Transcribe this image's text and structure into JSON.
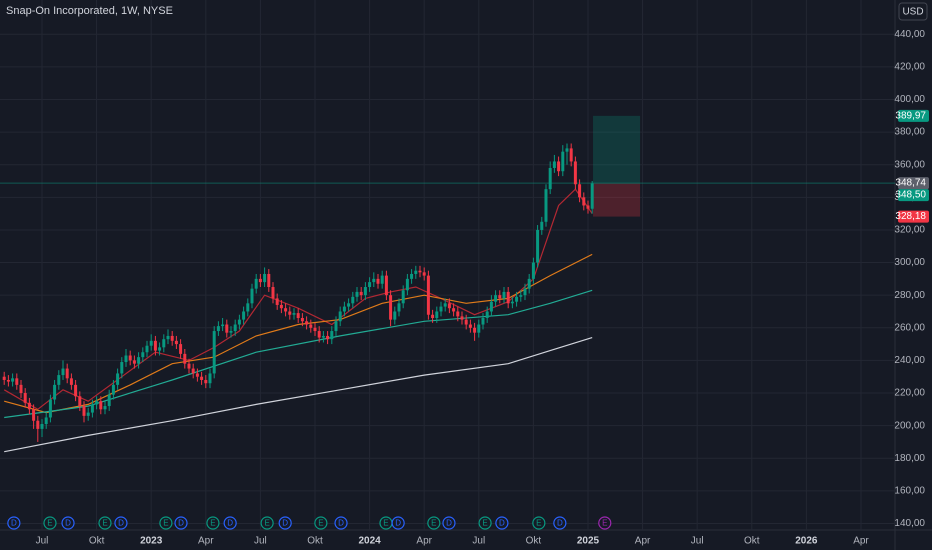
{
  "chart_data": {
    "type": "candlestick",
    "title": "Snap-On Incorporated, 1W, NYSE",
    "currency": "USD",
    "xlim": [
      -1,
      212.1
    ],
    "ylim": [
      136,
      461
    ],
    "grid": true,
    "up_color": "#089981",
    "down_color": "#f23645",
    "xticks": [
      {
        "value": 9,
        "label": "Jul"
      },
      {
        "value": 22,
        "label": "Okt"
      },
      {
        "value": 35,
        "label": "2023"
      },
      {
        "value": 48,
        "label": "Apr"
      },
      {
        "value": 61,
        "label": "Jul"
      },
      {
        "value": 74,
        "label": "Okt"
      },
      {
        "value": 87,
        "label": "2024"
      },
      {
        "value": 100,
        "label": "Apr"
      },
      {
        "value": 113,
        "label": "Jul"
      },
      {
        "value": 126,
        "label": "Okt"
      },
      {
        "value": 139,
        "label": "2025"
      },
      {
        "value": 152,
        "label": "Apr"
      },
      {
        "value": 165,
        "label": "Jul"
      },
      {
        "value": 178,
        "label": "Okt"
      },
      {
        "value": 191,
        "label": "2026"
      },
      {
        "value": 204,
        "label": "Apr"
      }
    ],
    "yticks": [
      {
        "value": 140,
        "label": "140,00"
      },
      {
        "value": 160,
        "label": "160,00"
      },
      {
        "value": 180,
        "label": "180,00"
      },
      {
        "value": 200,
        "label": "200,00"
      },
      {
        "value": 220,
        "label": "220,00"
      },
      {
        "value": 240,
        "label": "240,00"
      },
      {
        "value": 260,
        "label": "260,00"
      },
      {
        "value": 280,
        "label": "280,00"
      },
      {
        "value": 300,
        "label": "300,00"
      },
      {
        "value": 320,
        "label": "320,00"
      },
      {
        "value": 340,
        "label": "340,00"
      },
      {
        "value": 360,
        "label": "360,00"
      },
      {
        "value": 380,
        "label": "380,00"
      },
      {
        "value": 400,
        "label": "400,00"
      },
      {
        "value": 420,
        "label": "420,00"
      },
      {
        "value": 440,
        "label": "440,00"
      }
    ],
    "x": [
      0,
      1,
      2,
      3,
      4,
      5,
      6,
      7,
      8,
      9,
      10,
      11,
      12,
      13,
      14,
      15,
      16,
      17,
      18,
      19,
      20,
      21,
      22,
      23,
      24,
      25,
      26,
      27,
      28,
      29,
      30,
      31,
      32,
      33,
      34,
      35,
      36,
      37,
      38,
      39,
      40,
      41,
      42,
      43,
      44,
      45,
      46,
      47,
      48,
      49,
      50,
      51,
      52,
      53,
      54,
      55,
      56,
      57,
      58,
      59,
      60,
      61,
      62,
      63,
      64,
      65,
      66,
      67,
      68,
      69,
      70,
      71,
      72,
      73,
      74,
      75,
      76,
      77,
      78,
      79,
      80,
      81,
      82,
      83,
      84,
      85,
      86,
      87,
      88,
      89,
      90,
      91,
      92,
      93,
      94,
      95,
      96,
      97,
      98,
      99,
      100,
      101,
      102,
      103,
      104,
      105,
      106,
      107,
      108,
      109,
      110,
      111,
      112,
      113,
      114,
      115,
      116,
      117,
      118,
      119,
      120,
      121,
      122,
      123,
      124,
      125,
      126,
      127,
      128,
      129,
      130,
      131,
      132,
      133,
      134,
      135,
      136,
      137,
      138,
      139,
      140
    ],
    "candles": [
      [
        230,
        233,
        225,
        228
      ],
      [
        228,
        231,
        224,
        227
      ],
      [
        227,
        232,
        224,
        229
      ],
      [
        229,
        232,
        222,
        225
      ],
      [
        225,
        228,
        217,
        220
      ],
      [
        220,
        223,
        211,
        214
      ],
      [
        214,
        217,
        207,
        210
      ],
      [
        210,
        213,
        198,
        203
      ],
      [
        203,
        206,
        190,
        198
      ],
      [
        198,
        204,
        193,
        201
      ],
      [
        201,
        208,
        198,
        205
      ],
      [
        205,
        219,
        202,
        216
      ],
      [
        216,
        228,
        213,
        225
      ],
      [
        225,
        234,
        222,
        231
      ],
      [
        231,
        240,
        228,
        235
      ],
      [
        235,
        238,
        226,
        229
      ],
      [
        229,
        232,
        222,
        225
      ],
      [
        225,
        228,
        215,
        218
      ],
      [
        218,
        221,
        209,
        212
      ],
      [
        212,
        215,
        202,
        206
      ],
      [
        206,
        211,
        203,
        208
      ],
      [
        208,
        216,
        205,
        213
      ],
      [
        213,
        218,
        210,
        215
      ],
      [
        215,
        218,
        207,
        210
      ],
      [
        210,
        215,
        207,
        212
      ],
      [
        212,
        222,
        209,
        219
      ],
      [
        219,
        228,
        216,
        225
      ],
      [
        225,
        235,
        222,
        232
      ],
      [
        232,
        242,
        229,
        239
      ],
      [
        239,
        247,
        236,
        243
      ],
      [
        243,
        246,
        237,
        240
      ],
      [
        240,
        243,
        235,
        238
      ],
      [
        238,
        245,
        235,
        242
      ],
      [
        242,
        248,
        239,
        245
      ],
      [
        245,
        252,
        242,
        249
      ],
      [
        249,
        256,
        246,
        252
      ],
      [
        252,
        255,
        243,
        246
      ],
      [
        246,
        251,
        243,
        248
      ],
      [
        248,
        256,
        245,
        253
      ],
      [
        253,
        259,
        250,
        255
      ],
      [
        255,
        258,
        249,
        252
      ],
      [
        252,
        255,
        247,
        250
      ],
      [
        250,
        253,
        241,
        244
      ],
      [
        244,
        247,
        235,
        238
      ],
      [
        238,
        241,
        232,
        235
      ],
      [
        235,
        238,
        229,
        232
      ],
      [
        232,
        235,
        227,
        230
      ],
      [
        230,
        233,
        225,
        228
      ],
      [
        228,
        231,
        223,
        226
      ],
      [
        226,
        235,
        223,
        232
      ],
      [
        232,
        261,
        229,
        258
      ],
      [
        258,
        264,
        255,
        261
      ],
      [
        261,
        266,
        258,
        262
      ],
      [
        262,
        265,
        254,
        257
      ],
      [
        257,
        261,
        254,
        258
      ],
      [
        258,
        265,
        255,
        262
      ],
      [
        262,
        268,
        259,
        265
      ],
      [
        265,
        273,
        262,
        270
      ],
      [
        270,
        278,
        267,
        275
      ],
      [
        275,
        287,
        272,
        284
      ],
      [
        284,
        293,
        281,
        290
      ],
      [
        290,
        293,
        285,
        288
      ],
      [
        288,
        297,
        285,
        293
      ],
      [
        293,
        296,
        282,
        285
      ],
      [
        285,
        288,
        275,
        278
      ],
      [
        278,
        281,
        271,
        274
      ],
      [
        274,
        277,
        269,
        272
      ],
      [
        272,
        275,
        267,
        270
      ],
      [
        270,
        273,
        265,
        268
      ],
      [
        268,
        272,
        265,
        269
      ],
      [
        269,
        272,
        263,
        266
      ],
      [
        266,
        269,
        261,
        264
      ],
      [
        264,
        267,
        259,
        262
      ],
      [
        262,
        265,
        257,
        260
      ],
      [
        260,
        263,
        255,
        258
      ],
      [
        258,
        261,
        251,
        254
      ],
      [
        254,
        258,
        251,
        255
      ],
      [
        255,
        258,
        250,
        253
      ],
      [
        253,
        261,
        250,
        258
      ],
      [
        258,
        267,
        255,
        264
      ],
      [
        264,
        273,
        261,
        270
      ],
      [
        270,
        276,
        267,
        273
      ],
      [
        273,
        278,
        270,
        275
      ],
      [
        275,
        282,
        272,
        279
      ],
      [
        279,
        285,
        276,
        282
      ],
      [
        282,
        285,
        277,
        280
      ],
      [
        280,
        288,
        277,
        285
      ],
      [
        285,
        291,
        282,
        288
      ],
      [
        288,
        294,
        285,
        290
      ],
      [
        290,
        293,
        284,
        287
      ],
      [
        287,
        295,
        284,
        292
      ],
      [
        292,
        295,
        277,
        280
      ],
      [
        280,
        283,
        261,
        265
      ],
      [
        265,
        273,
        262,
        270
      ],
      [
        270,
        278,
        267,
        275
      ],
      [
        275,
        286,
        272,
        283
      ],
      [
        283,
        293,
        280,
        290
      ],
      [
        290,
        296,
        287,
        293
      ],
      [
        293,
        298,
        290,
        295
      ],
      [
        295,
        298,
        291,
        294
      ],
      [
        294,
        297,
        289,
        292
      ],
      [
        292,
        295,
        265,
        268
      ],
      [
        268,
        271,
        263,
        266
      ],
      [
        266,
        273,
        263,
        270
      ],
      [
        270,
        276,
        267,
        273
      ],
      [
        273,
        278,
        270,
        275
      ],
      [
        275,
        278,
        269,
        272
      ],
      [
        272,
        275,
        267,
        270
      ],
      [
        270,
        273,
        264,
        267
      ],
      [
        267,
        270,
        262,
        265
      ],
      [
        265,
        268,
        259,
        262
      ],
      [
        262,
        265,
        257,
        260
      ],
      [
        260,
        263,
        252,
        257
      ],
      [
        257,
        265,
        254,
        262
      ],
      [
        262,
        269,
        259,
        266
      ],
      [
        266,
        273,
        263,
        270
      ],
      [
        270,
        280,
        267,
        276
      ],
      [
        276,
        283,
        273,
        280
      ],
      [
        280,
        283,
        275,
        278
      ],
      [
        278,
        285,
        275,
        282
      ],
      [
        282,
        285,
        272,
        275
      ],
      [
        275,
        279,
        272,
        276
      ],
      [
        276,
        282,
        273,
        279
      ],
      [
        279,
        283,
        276,
        280
      ],
      [
        280,
        287,
        277,
        284
      ],
      [
        284,
        293,
        281,
        290
      ],
      [
        290,
        303,
        287,
        300
      ],
      [
        300,
        323,
        297,
        320
      ],
      [
        320,
        328,
        317,
        325
      ],
      [
        325,
        348,
        322,
        345
      ],
      [
        345,
        362,
        342,
        358
      ],
      [
        358,
        366,
        355,
        362
      ],
      [
        362,
        365,
        353,
        356
      ],
      [
        356,
        372,
        353,
        368
      ],
      [
        368,
        373,
        360,
        370
      ],
      [
        370,
        373,
        359,
        362
      ],
      [
        362,
        365,
        345,
        348
      ],
      [
        348,
        351,
        337,
        340
      ],
      [
        340,
        343,
        332,
        335
      ],
      [
        335,
        338,
        330,
        333
      ],
      [
        333,
        350,
        330,
        348.5
      ]
    ],
    "series": [
      {
        "color": "#b22833",
        "x": [
          0,
          8,
          14,
          20,
          28,
          36,
          44,
          50,
          56,
          62,
          70,
          78,
          86,
          92,
          98,
          104,
          112,
          120,
          126,
          132,
          136,
          140
        ],
        "values": [
          222,
          210,
          222,
          215,
          230,
          245,
          240,
          248,
          258,
          280,
          272,
          262,
          278,
          282,
          285,
          278,
          268,
          276,
          290,
          335,
          345,
          330
        ]
      },
      {
        "color": "#e07b1a",
        "x": [
          0,
          10,
          20,
          30,
          40,
          50,
          60,
          70,
          80,
          90,
          100,
          110,
          120,
          130,
          140
        ],
        "values": [
          215,
          208,
          213,
          225,
          238,
          242,
          255,
          262,
          265,
          275,
          280,
          275,
          278,
          292,
          305
        ]
      },
      {
        "color": "#22ab94",
        "x": [
          0,
          20,
          40,
          60,
          80,
          100,
          120,
          130,
          140
        ],
        "values": [
          205,
          212,
          228,
          245,
          255,
          264,
          268,
          275,
          283
        ]
      },
      {
        "color": "#d1d4dc",
        "x": [
          0,
          20,
          40,
          60,
          80,
          100,
          120,
          130,
          140
        ],
        "values": [
          184,
          194,
          203,
          213,
          222,
          231,
          238,
          246,
          254
        ]
      }
    ],
    "price_labels": [
      {
        "value": 389.97,
        "label": "389,97",
        "color": "#089981"
      },
      {
        "value": 348.74,
        "label": "348,74",
        "color": "#5d606b"
      },
      {
        "value": 348.5,
        "label": "348,50",
        "color": "#089981"
      },
      {
        "value": 328.18,
        "label": "328,18",
        "color": "#f23645"
      }
    ],
    "position": {
      "x": [
        140.2,
        151.4
      ]
    },
    "events": [
      {
        "x": 2.3,
        "label": "D",
        "color": "#2962ff"
      },
      {
        "x": 10.9,
        "label": "E",
        "color": "#089981"
      },
      {
        "x": 15.2,
        "label": "D",
        "color": "#2962ff"
      },
      {
        "x": 24,
        "label": "E",
        "color": "#089981"
      },
      {
        "x": 27.8,
        "label": "D",
        "color": "#2962ff"
      },
      {
        "x": 38.5,
        "label": "E",
        "color": "#089981"
      },
      {
        "x": 42.1,
        "label": "D",
        "color": "#2962ff"
      },
      {
        "x": 49.7,
        "label": "E",
        "color": "#089981"
      },
      {
        "x": 53.8,
        "label": "D",
        "color": "#2962ff"
      },
      {
        "x": 62.6,
        "label": "E",
        "color": "#089981"
      },
      {
        "x": 66.9,
        "label": "D",
        "color": "#2962ff"
      },
      {
        "x": 75.4,
        "label": "E",
        "color": "#089981"
      },
      {
        "x": 80.2,
        "label": "D",
        "color": "#2962ff"
      },
      {
        "x": 90.9,
        "label": "E",
        "color": "#089981"
      },
      {
        "x": 93.8,
        "label": "D",
        "color": "#2962ff"
      },
      {
        "x": 102.3,
        "label": "E",
        "color": "#089981"
      },
      {
        "x": 105.9,
        "label": "D",
        "color": "#2962ff"
      },
      {
        "x": 114.5,
        "label": "E",
        "color": "#089981"
      },
      {
        "x": 118.5,
        "label": "D",
        "color": "#2962ff"
      },
      {
        "x": 127.3,
        "label": "E",
        "color": "#089981"
      },
      {
        "x": 132.3,
        "label": "D",
        "color": "#2962ff"
      },
      {
        "x": 143,
        "label": "E",
        "color": "#9c27b0"
      }
    ]
  }
}
